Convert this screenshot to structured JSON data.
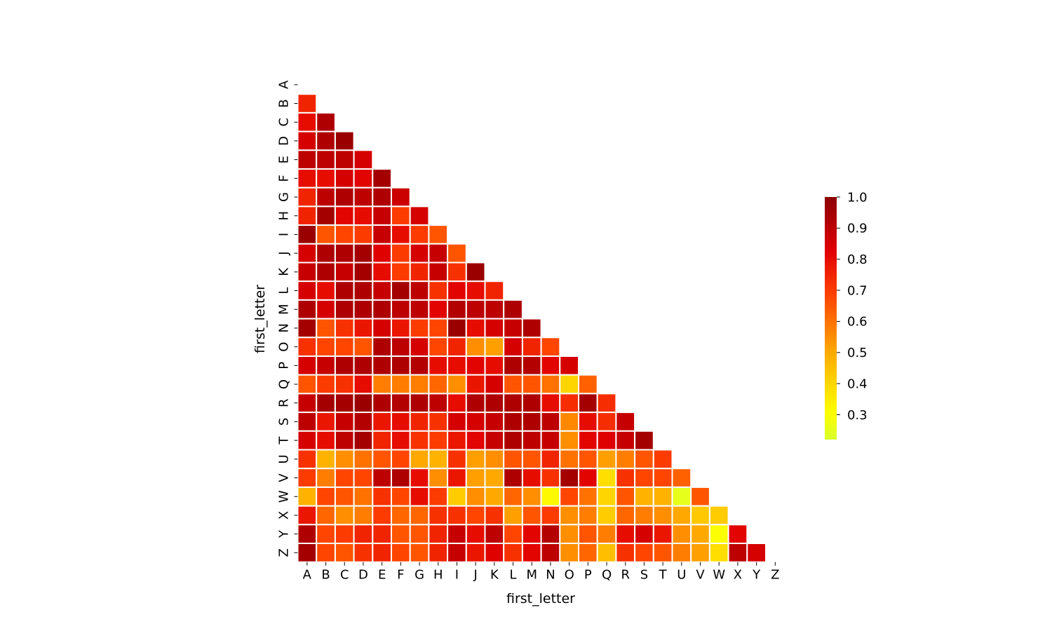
{
  "chart_data": {
    "type": "heatmap",
    "mask": "lower-triangle (cells on and above the diagonal are hidden)",
    "colormap": "autumn_r (light yellow-green → yellow → orange → red → dark red)",
    "xlabel": "first_letter",
    "ylabel": "first_letter",
    "x_categories": [
      "A",
      "B",
      "C",
      "D",
      "E",
      "F",
      "G",
      "H",
      "I",
      "J",
      "K",
      "L",
      "M",
      "N",
      "O",
      "P",
      "Q",
      "R",
      "S",
      "T",
      "U",
      "V",
      "W",
      "X",
      "Y",
      "Z"
    ],
    "y_categories": [
      "A",
      "B",
      "C",
      "D",
      "E",
      "F",
      "G",
      "H",
      "I",
      "J",
      "K",
      "L",
      "M",
      "N",
      "O",
      "P",
      "Q",
      "R",
      "S",
      "T",
      "U",
      "V",
      "W",
      "X",
      "Y",
      "Z"
    ],
    "colorbar": {
      "min": 0.22,
      "max": 1.0,
      "ticks": [
        "0.3",
        "0.4",
        "0.5",
        "0.6",
        "0.7",
        "0.8",
        "0.9",
        "1.0"
      ],
      "tick_values": [
        0.3,
        0.4,
        0.5,
        0.6,
        0.7,
        0.8,
        0.9,
        1.0
      ]
    },
    "values": [
      [],
      [
        0.75
      ],
      [
        0.8,
        0.93
      ],
      [
        0.85,
        0.93,
        0.97
      ],
      [
        0.9,
        0.9,
        0.9,
        0.85
      ],
      [
        0.8,
        0.8,
        0.85,
        0.82,
        0.95
      ],
      [
        0.75,
        0.9,
        0.93,
        0.9,
        0.93,
        0.87
      ],
      [
        0.75,
        0.95,
        0.82,
        0.8,
        0.88,
        0.7,
        0.85
      ],
      [
        0.97,
        0.65,
        0.68,
        0.7,
        0.88,
        0.8,
        0.7,
        0.65
      ],
      [
        0.85,
        0.93,
        0.93,
        0.95,
        0.83,
        0.7,
        0.85,
        0.88,
        0.65
      ],
      [
        0.88,
        0.93,
        0.88,
        0.95,
        0.8,
        0.7,
        0.75,
        0.88,
        0.72,
        0.97
      ],
      [
        0.85,
        0.8,
        0.93,
        0.93,
        0.88,
        0.95,
        0.9,
        0.72,
        0.82,
        0.8,
        0.75
      ],
      [
        0.93,
        0.85,
        0.93,
        0.93,
        0.93,
        0.9,
        0.9,
        0.82,
        0.92,
        0.9,
        0.9,
        0.93
      ],
      [
        0.95,
        0.65,
        0.72,
        0.78,
        0.85,
        0.78,
        0.7,
        0.68,
        0.97,
        0.8,
        0.85,
        0.88,
        0.93
      ],
      [
        0.72,
        0.68,
        0.68,
        0.65,
        0.93,
        0.9,
        0.85,
        0.68,
        0.75,
        0.55,
        0.52,
        0.85,
        0.75,
        0.68
      ],
      [
        0.85,
        0.88,
        0.93,
        0.93,
        0.93,
        0.93,
        0.92,
        0.8,
        0.8,
        0.82,
        0.8,
        0.93,
        0.92,
        0.82,
        0.85
      ],
      [
        0.65,
        0.7,
        0.72,
        0.8,
        0.58,
        0.58,
        0.58,
        0.62,
        0.55,
        0.78,
        0.85,
        0.65,
        0.65,
        0.6,
        0.4,
        0.63
      ],
      [
        0.88,
        0.95,
        0.95,
        0.97,
        0.93,
        0.92,
        0.93,
        0.9,
        0.8,
        0.93,
        0.93,
        0.93,
        0.93,
        0.8,
        0.73,
        0.95,
        0.73
      ],
      [
        0.9,
        0.78,
        0.88,
        0.92,
        0.78,
        0.8,
        0.75,
        0.72,
        0.85,
        0.85,
        0.88,
        0.93,
        0.93,
        0.9,
        0.56,
        0.8,
        0.73,
        0.88
      ],
      [
        0.85,
        0.8,
        0.9,
        0.95,
        0.75,
        0.8,
        0.72,
        0.7,
        0.78,
        0.82,
        0.88,
        0.93,
        0.9,
        0.88,
        0.55,
        0.82,
        0.83,
        0.88,
        0.95
      ],
      [
        0.72,
        0.48,
        0.55,
        0.6,
        0.65,
        0.68,
        0.5,
        0.48,
        0.72,
        0.52,
        0.55,
        0.65,
        0.65,
        0.75,
        0.6,
        0.65,
        0.52,
        0.58,
        0.65,
        0.7
      ],
      [
        0.7,
        0.58,
        0.68,
        0.68,
        0.9,
        0.93,
        0.8,
        0.55,
        0.78,
        0.52,
        0.5,
        0.93,
        0.8,
        0.72,
        0.95,
        0.82,
        0.38,
        0.72,
        0.68,
        0.68,
        0.63
      ],
      [
        0.48,
        0.68,
        0.65,
        0.6,
        0.72,
        0.68,
        0.8,
        0.7,
        0.42,
        0.55,
        0.5,
        0.62,
        0.55,
        0.32,
        0.68,
        0.6,
        0.4,
        0.65,
        0.48,
        0.48,
        0.25,
        0.65
      ],
      [
        0.78,
        0.62,
        0.55,
        0.58,
        0.7,
        0.62,
        0.62,
        0.72,
        0.72,
        0.68,
        0.72,
        0.52,
        0.65,
        0.7,
        0.55,
        0.58,
        0.42,
        0.62,
        0.58,
        0.55,
        0.5,
        0.43,
        0.42
      ],
      [
        0.93,
        0.68,
        0.7,
        0.75,
        0.75,
        0.65,
        0.65,
        0.75,
        0.88,
        0.8,
        0.9,
        0.68,
        0.82,
        0.92,
        0.55,
        0.65,
        0.58,
        0.8,
        0.85,
        0.78,
        0.55,
        0.5,
        0.3,
        0.82
      ],
      [
        0.95,
        0.68,
        0.65,
        0.72,
        0.75,
        0.68,
        0.65,
        0.75,
        0.88,
        0.78,
        0.83,
        0.72,
        0.82,
        0.9,
        0.55,
        0.62,
        0.45,
        0.72,
        0.68,
        0.65,
        0.58,
        0.52,
        0.38,
        0.9,
        0.85
      ]
    ]
  }
}
